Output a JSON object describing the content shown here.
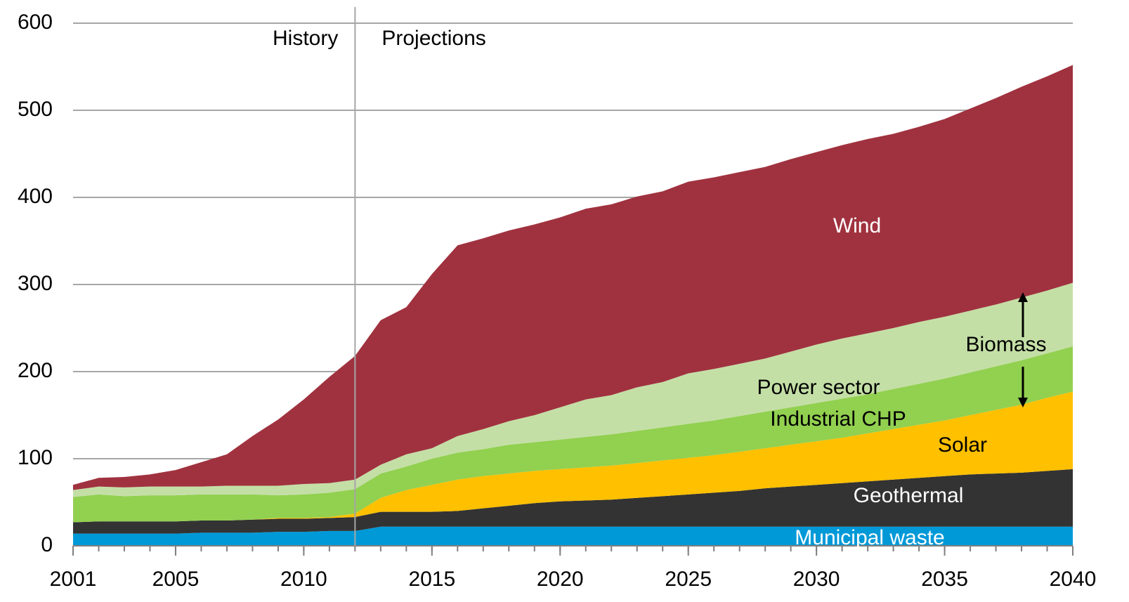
{
  "chart_data": {
    "type": "stacked_area",
    "x": [
      2001,
      2002,
      2003,
      2004,
      2005,
      2006,
      2007,
      2008,
      2009,
      2010,
      2011,
      2012,
      2013,
      2014,
      2015,
      2016,
      2017,
      2018,
      2019,
      2020,
      2021,
      2022,
      2023,
      2024,
      2025,
      2026,
      2027,
      2028,
      2029,
      2030,
      2031,
      2032,
      2033,
      2034,
      2035,
      2036,
      2037,
      2038,
      2039,
      2040
    ],
    "series": [
      {
        "name": "Municipal waste",
        "color": "#0099d8",
        "values": [
          14,
          14,
          14,
          14,
          14,
          15,
          15,
          15,
          16,
          16,
          17,
          17,
          22,
          22,
          22,
          22,
          22,
          22,
          22,
          22,
          22,
          22,
          22,
          22,
          22,
          22,
          22,
          22,
          22,
          22,
          22,
          22,
          22,
          22,
          22,
          22,
          22,
          22,
          22,
          22
        ]
      },
      {
        "name": "Geothermal",
        "color": "#333333",
        "values": [
          13,
          14,
          14,
          14,
          14,
          14,
          14,
          15,
          15,
          15,
          15,
          16,
          17,
          17,
          17,
          18,
          21,
          24,
          27,
          29,
          30,
          31,
          33,
          35,
          37,
          39,
          41,
          44,
          46,
          48,
          50,
          52,
          54,
          56,
          58,
          60,
          61,
          62,
          64,
          66
        ]
      },
      {
        "name": "Solar",
        "color": "#ffc000",
        "values": [
          0,
          0,
          0,
          0,
          0,
          0,
          0,
          0,
          1,
          1,
          1,
          4,
          16,
          25,
          31,
          36,
          37,
          37,
          37,
          37,
          38,
          39,
          40,
          41,
          42,
          43,
          45,
          46,
          48,
          50,
          52,
          55,
          58,
          61,
          64,
          68,
          73,
          78,
          84,
          89
        ]
      },
      {
        "name": "Industrial CHP",
        "color": "#92d050",
        "values": [
          29,
          31,
          29,
          30,
          30,
          30,
          30,
          29,
          26,
          27,
          28,
          28,
          28,
          27,
          30,
          31,
          31,
          33,
          33,
          34,
          35,
          36,
          37,
          38,
          39,
          40,
          41,
          42,
          43,
          44,
          45,
          45,
          46,
          47,
          48,
          49,
          50,
          51,
          51,
          52
        ]
      },
      {
        "name": "Power sector",
        "color": "#c4dfa6",
        "values": [
          8,
          9,
          10,
          10,
          10,
          9,
          10,
          10,
          11,
          12,
          11,
          11,
          10,
          14,
          12,
          19,
          23,
          27,
          31,
          37,
          43,
          45,
          50,
          52,
          58,
          59,
          60,
          61,
          64,
          67,
          69,
          70,
          70,
          71,
          71,
          71,
          71,
          72,
          72,
          73
        ]
      },
      {
        "name": "Wind",
        "color": "#a0323f",
        "values": [
          6,
          10,
          12,
          14,
          19,
          28,
          36,
          57,
          76,
          97,
          122,
          142,
          166,
          169,
          200,
          219,
          219,
          219,
          219,
          218,
          219,
          219,
          219,
          219,
          220,
          220,
          220,
          220,
          221,
          221,
          222,
          223,
          223,
          224,
          227,
          232,
          237,
          242,
          246,
          250
        ]
      }
    ],
    "xlim": [
      2001,
      2040
    ],
    "xticks": [
      2001,
      2005,
      2010,
      2015,
      2020,
      2025,
      2030,
      2035,
      2040
    ],
    "ylim": [
      0,
      600
    ],
    "yticks": [
      0,
      100,
      200,
      300,
      400,
      500,
      600
    ],
    "grid": true,
    "divider_x": 2012,
    "annotations": [
      "History",
      "Projections",
      "Biomass"
    ]
  }
}
